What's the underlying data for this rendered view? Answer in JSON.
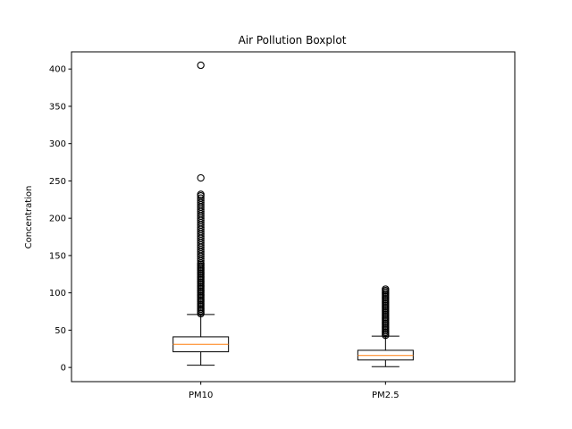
{
  "chart_data": {
    "type": "boxplot",
    "title": "Air Pollution Boxplot",
    "xlabel": "",
    "ylabel": "Concentration",
    "ylim": [
      -19,
      423
    ],
    "yticks": [
      0,
      50,
      100,
      150,
      200,
      250,
      300,
      350,
      400
    ],
    "categories": [
      "PM10",
      "PM2.5"
    ],
    "grid": false,
    "colors": {
      "box": "#000000",
      "median": "#ff7f0e",
      "flier": "#000000"
    },
    "boxes": [
      {
        "name": "PM10",
        "whisker_low": 3,
        "q1": 21,
        "median": 31,
        "q3": 41,
        "whisker_high": 71,
        "fliers": [
          72,
          74,
          76,
          78,
          80,
          82,
          84,
          86,
          88,
          90,
          92,
          94,
          96,
          98,
          100,
          102,
          104,
          106,
          108,
          110,
          112,
          114,
          116,
          118,
          120,
          122,
          124,
          126,
          128,
          130,
          132,
          134,
          136,
          138,
          140,
          143,
          146,
          149,
          152,
          155,
          158,
          161,
          164,
          167,
          170,
          173,
          176,
          179,
          182,
          185,
          188,
          191,
          194,
          197,
          200,
          203,
          206,
          209,
          212,
          215,
          218,
          221,
          224,
          227,
          230,
          232,
          254,
          405
        ]
      },
      {
        "name": "PM2.5",
        "whisker_low": 1,
        "q1": 10,
        "median": 16,
        "q3": 23,
        "whisker_high": 42,
        "fliers": [
          43,
          45,
          47,
          49,
          51,
          53,
          55,
          57,
          59,
          61,
          63,
          65,
          67,
          69,
          71,
          73,
          75,
          77,
          79,
          81,
          83,
          85,
          87,
          89,
          91,
          93,
          95,
          97,
          99,
          101,
          103,
          105
        ]
      }
    ]
  }
}
